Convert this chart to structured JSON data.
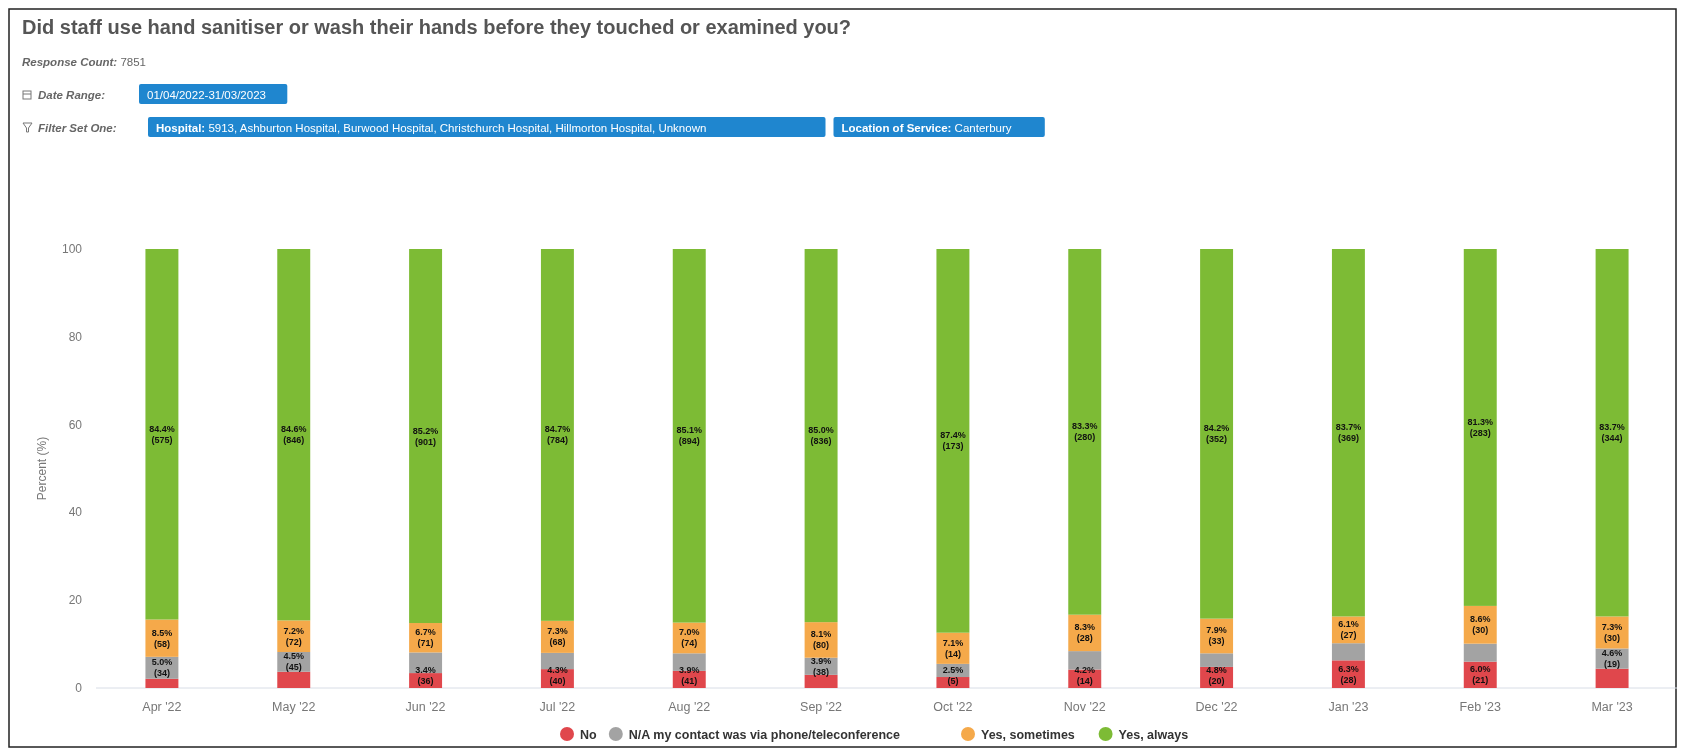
{
  "chart_data": {
    "type": "bar",
    "stacked": true,
    "title": "Did staff use hand sanitiser or wash their hands before they touched or examined you?",
    "annotations": [
      "Response Count: 7851",
      "Date Range:",
      "01/04/2022-31/03/2023",
      "Filter Set One:",
      "Hospital: 5913, Ashburton Hospital, Burwood Hospital, Christchurch Hospital, Hillmorton Hospital, Unknown",
      "Location of Service: Canterbury"
    ],
    "ylabel": "Percent (%)",
    "categories": [
      "Apr '22",
      "May '22",
      "Jun '22",
      "Jul '22",
      "Aug '22",
      "Sep '22",
      "Oct '22",
      "Nov '22",
      "Dec '22",
      "Jan '23",
      "Feb '23",
      "Mar '23"
    ],
    "ylim": [
      0,
      100
    ],
    "yticks": [
      0,
      20,
      40,
      60,
      80,
      100
    ],
    "grid": false,
    "legend": "bottom",
    "series": [
      {
        "name": "No",
        "color": "#e0474c",
        "values": [
          2.1,
          3.7,
          3.4,
          4.3,
          3.9,
          3.0,
          2.5,
          4.2,
          4.8,
          6.3,
          6.0,
          4.4
        ],
        "value_labels": [
          null,
          null,
          "3.4%\n(36)",
          "4.3%\n(40)",
          "3.9%\n(41)",
          null,
          "2.5%\n(5)",
          "4.2%\n(14)",
          "4.8%\n(20)",
          "6.3%\n(28)",
          "6.0%\n(21)",
          null
        ]
      },
      {
        "name": "N/A my contact was via phone/teleconference",
        "color": "#a3a3a3",
        "values": [
          5.0,
          4.5,
          4.7,
          3.7,
          4.0,
          3.9,
          3.0,
          4.2,
          3.1,
          3.9,
          4.1,
          4.6
        ],
        "value_labels": [
          "5.0%\n(34)",
          "4.5%\n(45)",
          null,
          null,
          null,
          "3.9%\n(38)",
          null,
          null,
          null,
          null,
          null,
          "4.6%\n(19)"
        ]
      },
      {
        "name": "Yes, sometimes",
        "color": "#f5a94a",
        "values": [
          8.5,
          7.2,
          6.7,
          7.3,
          7.0,
          8.1,
          7.1,
          8.3,
          7.9,
          6.1,
          8.6,
          7.3
        ],
        "value_labels": [
          "8.5%\n(58)",
          "7.2%\n(72)",
          "6.7%\n(71)",
          "7.3%\n(68)",
          "7.0%\n(74)",
          "8.1%\n(80)",
          "7.1%\n(14)",
          "8.3%\n(28)",
          "7.9%\n(33)",
          "6.1%\n(27)",
          "8.6%\n(30)",
          "7.3%\n(30)"
        ]
      },
      {
        "name": "Yes, always",
        "color": "#7dbb35",
        "values": [
          84.4,
          84.6,
          85.2,
          84.7,
          85.1,
          85.0,
          87.4,
          83.3,
          84.2,
          83.7,
          81.3,
          83.7
        ],
        "value_labels": [
          "84.4%\n(575)",
          "84.6%\n(846)",
          "85.2%\n(901)",
          "84.7%\n(784)",
          "85.1%\n(894)",
          "85.0%\n(836)",
          "87.4%\n(173)",
          "83.3%\n(280)",
          "84.2%\n(352)",
          "83.7%\n(369)",
          "81.3%\n(283)",
          "83.7%\n(344)"
        ]
      }
    ]
  }
}
